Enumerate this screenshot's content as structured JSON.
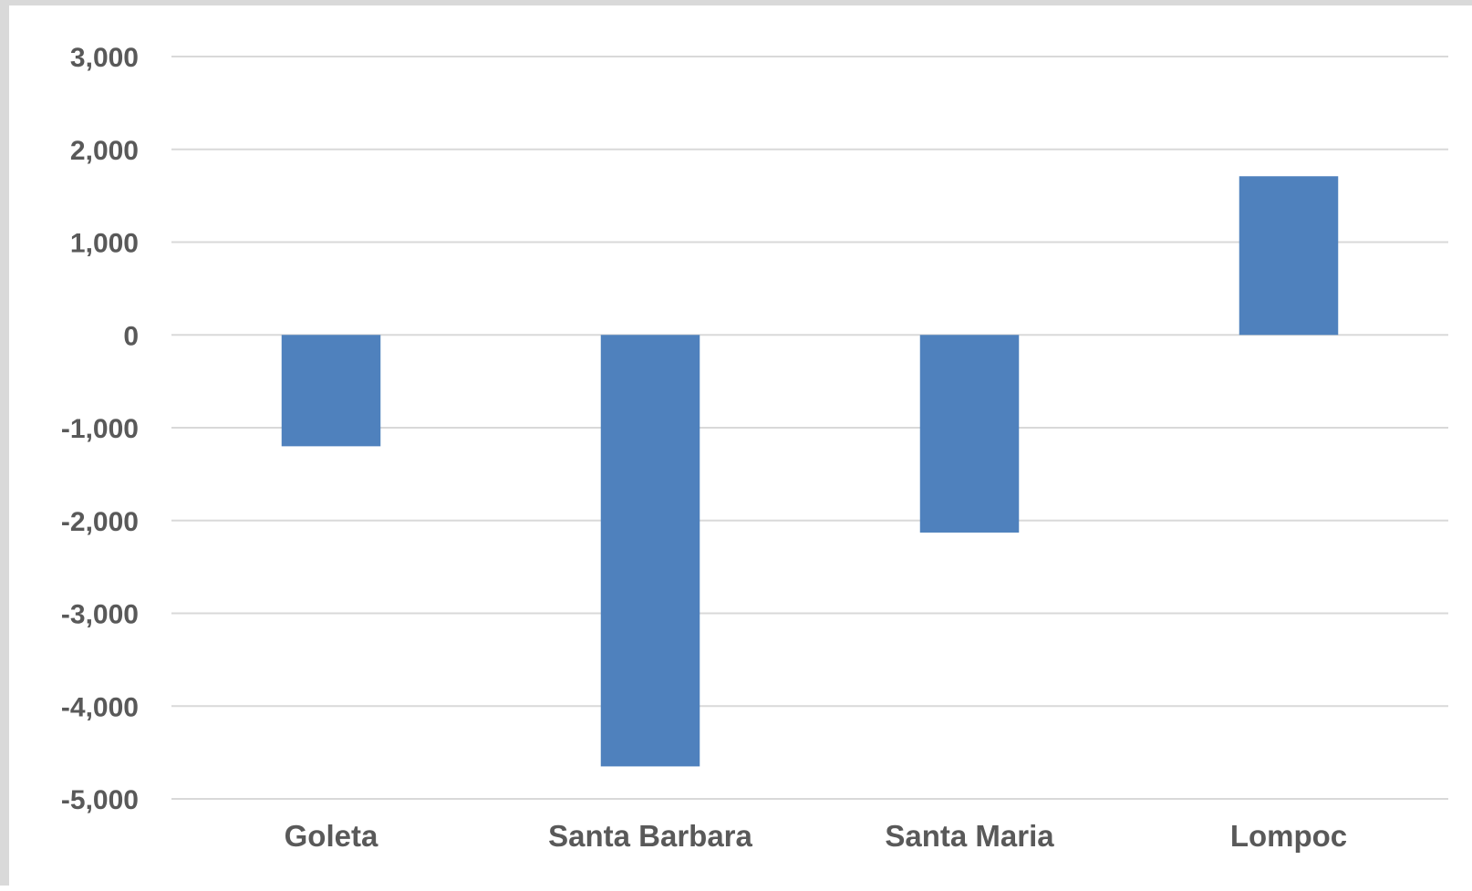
{
  "chart_data": {
    "type": "bar",
    "categories": [
      "Goleta",
      "Santa Barbara",
      "Santa Maria",
      "Lompoc"
    ],
    "values": [
      -1200,
      -4650,
      -2130,
      1710
    ],
    "title": "",
    "xlabel": "",
    "ylabel": "",
    "ylim": [
      -5000,
      3000
    ],
    "yticks": [
      3000,
      2000,
      1000,
      0,
      -1000,
      -2000,
      -3000,
      -4000,
      -5000
    ],
    "ytick_labels": [
      "3,000",
      "2,000",
      "1,000",
      "0",
      "-1,000",
      "-2,000",
      "-3,000",
      "-4,000",
      "-5,000"
    ],
    "grid": true,
    "legend": "none",
    "bar_color": "#4f81bd"
  }
}
